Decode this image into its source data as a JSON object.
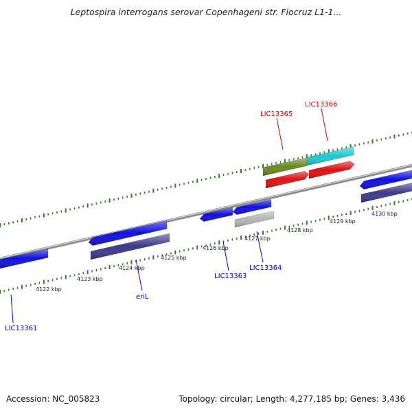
{
  "title": "Leptospira interrogans serovar Copenhageni str. Fiocruz L1-1...",
  "footer": {
    "accession": "Accession: NC_005823",
    "stats": "Topology: circular; Length: 4,277,185 bp; Genes: 3,436"
  },
  "colors": {
    "backbone": "#8a8a8a",
    "tick": "#2e7d1f",
    "gene_blue": "#1010e0",
    "gene_navy": "#3c3a8a",
    "gene_red": "#e01010",
    "gene_olive": "#6a8a20",
    "gene_cyan": "#20c8d0",
    "gene_gray": "#b4b4b4",
    "label_blue": "#0000cc",
    "label_red": "#cc0000"
  },
  "kbp_labels": [
    "4122 kbp",
    "4123 kbp",
    "4124 kbp",
    "4125 kbp",
    "4126 kbp",
    "4127 kbp",
    "4128 kbp",
    "4129 kbp",
    "4130 kbp"
  ],
  "gene_labels": [
    {
      "name": "LIC13361",
      "color": "label_blue"
    },
    {
      "name": "eriL",
      "color": "label_blue"
    },
    {
      "name": "LIC13363",
      "color": "label_blue"
    },
    {
      "name": "LIC13364",
      "color": "label_blue"
    },
    {
      "name": "LIC13365",
      "color": "label_red"
    },
    {
      "name": "LIC13366",
      "color": "label_red"
    }
  ]
}
